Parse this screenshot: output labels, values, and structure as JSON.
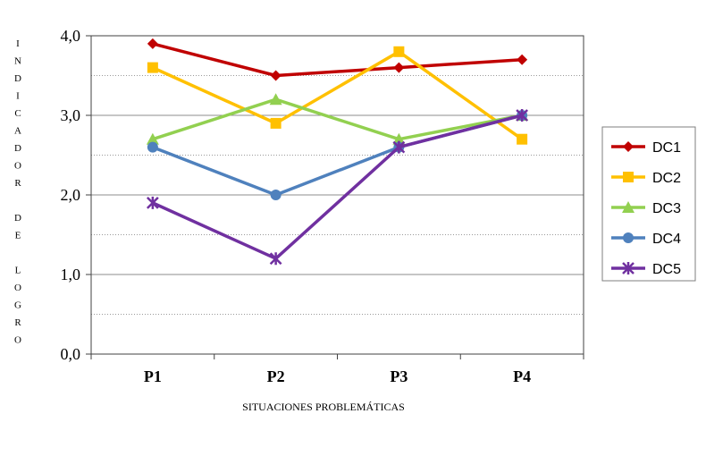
{
  "chart_data": {
    "type": "line",
    "categories": [
      "P1",
      "P2",
      "P3",
      "P4"
    ],
    "xlabel": "SITUACIONES PROBLEMÁTICAS",
    "ylabel": "INDICADOR DE LOGRO",
    "ylabel_letters": [
      "I",
      "N",
      "D",
      "I",
      "C",
      "A",
      "D",
      "O",
      "R",
      "",
      "D",
      "E",
      "",
      "L",
      "O",
      "G",
      "R",
      "O"
    ],
    "ylim": [
      0,
      4
    ],
    "yticks": [
      "0,0",
      "1,0",
      "2,0",
      "3,0",
      "4,0"
    ],
    "minor_gridlines": [
      0.5,
      1.5,
      2.5,
      3.5
    ],
    "legend_position": "right",
    "series": [
      {
        "name": "DC1",
        "values": [
          3.9,
          3.5,
          3.6,
          3.7
        ],
        "color": "#C00000",
        "marker": "diamond"
      },
      {
        "name": "DC2",
        "values": [
          3.6,
          2.9,
          3.8,
          2.7
        ],
        "color": "#FFC000",
        "marker": "square"
      },
      {
        "name": "DC3",
        "values": [
          2.7,
          3.2,
          2.7,
          3.0
        ],
        "color": "#92D050",
        "marker": "triangle"
      },
      {
        "name": "DC4",
        "values": [
          2.6,
          2.0,
          2.6,
          3.0
        ],
        "color": "#4F81BD",
        "marker": "circle"
      },
      {
        "name": "DC5",
        "values": [
          1.9,
          1.2,
          2.6,
          3.0
        ],
        "color": "#7030A0",
        "marker": "star"
      }
    ]
  }
}
